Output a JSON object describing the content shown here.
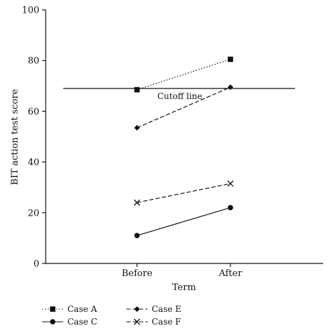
{
  "chart_data": {
    "type": "line",
    "xlabel": "Term",
    "ylabel": "BIT action test score",
    "categories": [
      "Before",
      "After"
    ],
    "ylim": [
      0,
      100
    ],
    "yticks": [
      0,
      20,
      40,
      60,
      80,
      100
    ],
    "grid": false,
    "legend_position": "bottom",
    "series": [
      {
        "name": "Case A",
        "values": [
          68.5,
          80.5
        ],
        "marker": "square",
        "linestyle": "dotted"
      },
      {
        "name": "Case E",
        "values": [
          53.5,
          69.5
        ],
        "marker": "diamond",
        "linestyle": "dashed"
      },
      {
        "name": "Case C",
        "values": [
          11,
          22
        ],
        "marker": "circle",
        "linestyle": "solid"
      },
      {
        "name": "Case F",
        "values": [
          24,
          31.5
        ],
        "marker": "x",
        "linestyle": "dashed"
      }
    ],
    "reference_lines": [
      {
        "label": "Cutoff line",
        "y": 69
      }
    ]
  }
}
